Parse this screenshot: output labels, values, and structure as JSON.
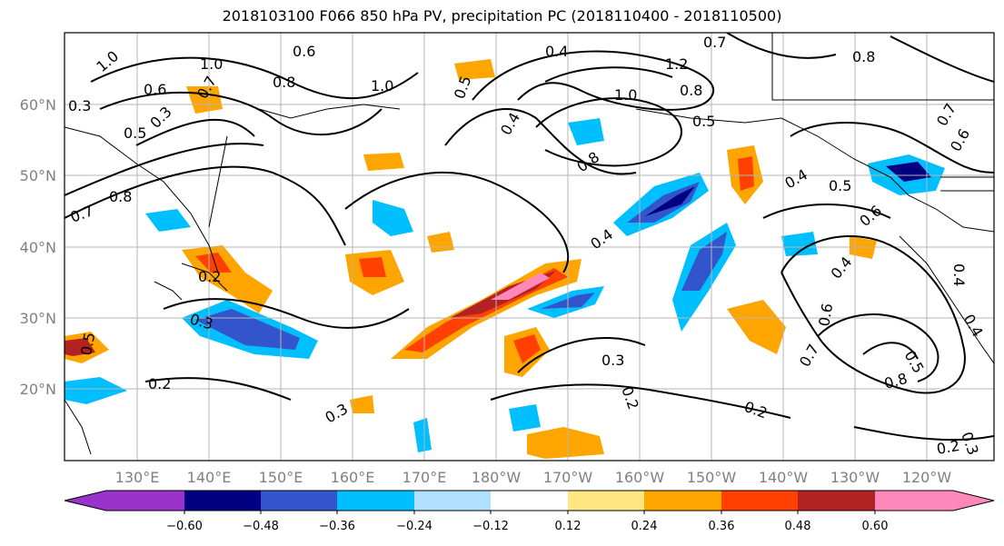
{
  "title": "2018103100 F066 850 hPa PV, precipitation PC (2018110400 - 2018110500)",
  "map": {
    "lon_labels": [
      "130°E",
      "140°E",
      "150°E",
      "160°E",
      "170°E",
      "180°W",
      "170°W",
      "160°W",
      "150°W",
      "140°W",
      "130°W",
      "120°W"
    ],
    "lat_labels": [
      "60°N",
      "50°N",
      "40°N",
      "30°N",
      "20°N"
    ],
    "contour_labels": [
      "1.0",
      "1.0",
      "0.6",
      "0.8",
      "0.6",
      "0.5",
      "0.3",
      "1.0",
      "0.5",
      "0.4",
      "0.8",
      "0.4",
      "0.3",
      "0.8",
      "0.5",
      "0.4",
      "0.7",
      "1.2",
      "1.0",
      "0.4",
      "0.8",
      "0.7",
      "0.6",
      "0.4",
      "0.5",
      "0.7",
      "0.8",
      "0.6",
      "0.5",
      "0.4",
      "0.6",
      "0.2",
      "0.3",
      "0.2",
      "0.3",
      "0.3",
      "0.2",
      "0.2",
      "0.8",
      "0.2",
      "0.3",
      "0.7",
      "0.7",
      "0.5",
      "0.4"
    ]
  },
  "colorbar": {
    "ticks": [
      "−0.60",
      "−0.48",
      "−0.36",
      "−0.24",
      "−0.12",
      "0.12",
      "0.24",
      "0.36",
      "0.48",
      "0.60"
    ],
    "colors": [
      "#9933cc",
      "#000080",
      "#3355cc",
      "#00bfff",
      "#b0e0ff",
      "#ffffff",
      "#ffe680",
      "#ffa500",
      "#ff4000",
      "#b22222",
      "#ff88bb"
    ]
  }
}
